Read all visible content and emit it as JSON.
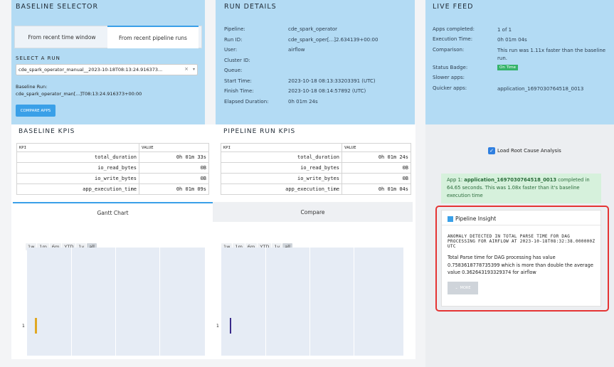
{
  "baseline_selector": {
    "title": "BASELINE SELECTOR",
    "tabs": [
      "From recent time window",
      "From recent pipeline runs"
    ],
    "select_label": "SELECT A RUN",
    "select_value": "cde_spark_operator_manual__2023-10-18T08:13:24.916373...",
    "baseline_run_label": "Baseline Run:",
    "baseline_run_value": "cde_spark_operator_man[...]T08:13:24.916373+00:00",
    "compare_button": "COMPARE APPS"
  },
  "run_details": {
    "title": "RUN DETAILS",
    "rows": [
      {
        "label": "Pipeline:",
        "value": "cde_spark_operator"
      },
      {
        "label": "Run ID:",
        "value": "cde_spark_oper[...]2.634139+00:00"
      },
      {
        "label": "User:",
        "value": "airflow"
      },
      {
        "label": "Cluster ID:",
        "value": ""
      },
      {
        "label": "Queue:",
        "value": ""
      },
      {
        "label": "Start Time:",
        "value": "2023-10-18 08:13:33203391 (UTC)"
      },
      {
        "label": "Finish Time:",
        "value": "2023-10-18 08:14:57892 (UTC)"
      },
      {
        "label": "Elapsed Duration:",
        "value": "0h 01m 24s"
      }
    ]
  },
  "live_feed": {
    "title": "LIVE FEED",
    "rows": [
      {
        "label": "Apps completed:",
        "value": "1 of 1"
      },
      {
        "label": "Execution Time:",
        "value": "0h 01m 04s"
      },
      {
        "label": "Comparison:",
        "value": "This run was 1.11x faster than the baseline run."
      },
      {
        "label": "Status Badge:",
        "value": "On Time"
      },
      {
        "label": "Slower apps:",
        "value": ""
      },
      {
        "label": "Quicker apps:",
        "value": "application_1697030764518_0013"
      }
    ],
    "badge_color": "#35b36a",
    "checkbox_label": "Load Root Cause Analysis",
    "app_message_prefix": "App 1:",
    "app_message_name": "application_1697030764518_0013",
    "app_message_rest": "completed in 64.65 seconds. This was 1.08x faster than it's baseline execution time",
    "insight_title": "Pipeline Insight",
    "insight_heading": "ANOMALY DETECTED IN TOTAL PARSE TIME FOR DAG PROCESSING FOR AIRFLOW AT 2023-10-18T08:32:38.000000Z UTC",
    "insight_body": "Total Parse time for DAG processing has value 0.7583618778735399 which is more than double the average value 0.362643193329374 for airflow",
    "more_button": "MORE"
  },
  "baseline_kpis": {
    "title": "BASELINE KPIS",
    "headers": [
      "KPI",
      "VALUE"
    ],
    "rows": [
      [
        "total_duration",
        "0h 01m 33s"
      ],
      [
        "io_read_bytes",
        "0B"
      ],
      [
        "io_write_bytes",
        "0B"
      ],
      [
        "app_execution_time",
        "0h 01m 09s"
      ]
    ]
  },
  "pipeline_kpis": {
    "title": "PIPELINE RUN KPIS",
    "headers": [
      "KPI",
      "VALUE"
    ],
    "rows": [
      [
        "total_duration",
        "0h 01m 24s"
      ],
      [
        "io_read_bytes",
        "0B"
      ],
      [
        "io_write_bytes",
        "0B"
      ],
      [
        "app_execution_time",
        "0h 01m 04s"
      ]
    ]
  },
  "chart_tabs": [
    "Gantt Chart",
    "Compare"
  ],
  "range_buttons": [
    "1w",
    "1m",
    "6m",
    "YTD",
    "1y",
    "all"
  ],
  "plots": {
    "left_tick": "1",
    "right_tick": "1",
    "left_bar_color": "#e0a823",
    "right_bar_color": "#3a2a8a"
  }
}
